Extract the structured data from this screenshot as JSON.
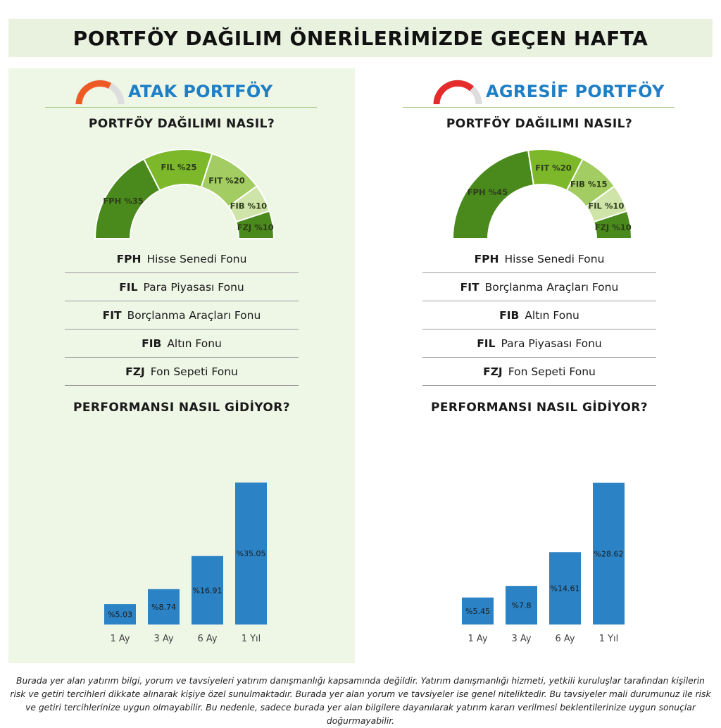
{
  "title": "PORTFÖY DAĞILIM ÖNERİLERİMİZDE GEÇEN HAFTA",
  "panels": [
    {
      "name": "ATAK PORTFÖY",
      "gauge_color": "#ee5a24",
      "distribution_title": "PORTFÖY DAĞILIMI NASIL?",
      "performance_title": "PERFORMANSI NASIL GİDİYOR?",
      "legend": [
        {
          "code": "FPH",
          "label": "Hisse Senedi Fonu"
        },
        {
          "code": "FIL",
          "label": "Para Piyasası Fonu"
        },
        {
          "code": "FIT",
          "label": "Borçlanma Araçları Fonu"
        },
        {
          "code": "FIB",
          "label": "Altın Fonu"
        },
        {
          "code": "FZJ",
          "label": "Fon Sepeti Fonu"
        }
      ]
    },
    {
      "name": "AGRESİF PORTFÖY",
      "gauge_color": "#e52b2b",
      "distribution_title": "PORTFÖY DAĞILIMI NASIL?",
      "performance_title": "PERFORMANSI NASIL GİDİYOR?",
      "legend": [
        {
          "code": "FPH",
          "label": "Hisse Senedi Fonu"
        },
        {
          "code": "FIT",
          "label": "Borçlanma Araçları Fonu"
        },
        {
          "code": "FIB",
          "label": "Altın Fonu"
        },
        {
          "code": "FIL",
          "label": "Para Piyasası Fonu"
        },
        {
          "code": "FZJ",
          "label": "Fon Sepeti Fonu"
        }
      ]
    }
  ],
  "chart_data": [
    {
      "type": "pie",
      "variant": "semi-donut",
      "panel": "ATAK PORTFÖY",
      "slices": [
        {
          "label": "FPH %35",
          "value": 35,
          "color": "#4a8a1c"
        },
        {
          "label": "FIL %25",
          "value": 25,
          "color": "#7cb82a"
        },
        {
          "label": "FIT %20",
          "value": 20,
          "color": "#a3cc63"
        },
        {
          "label": "FIB %10",
          "value": 10,
          "color": "#cfe4a9"
        },
        {
          "label": "FZJ %10",
          "value": 10,
          "color": "#4a8a1c"
        }
      ]
    },
    {
      "type": "bar",
      "panel": "ATAK PORTFÖY",
      "categories": [
        "1 Ay",
        "3 Ay",
        "6 Ay",
        "1 Yıl"
      ],
      "values": [
        5.03,
        8.74,
        16.91,
        35.05
      ],
      "value_labels": [
        "%5.03",
        "%8.74",
        "%16.91",
        "%35.05"
      ],
      "ylim": [
        0,
        40
      ],
      "color": "#2b83c6"
    },
    {
      "type": "pie",
      "variant": "semi-donut",
      "panel": "AGRESİF PORTFÖY",
      "slices": [
        {
          "label": "FPH %45",
          "value": 45,
          "color": "#4a8a1c"
        },
        {
          "label": "FIT %20",
          "value": 20,
          "color": "#7cb82a"
        },
        {
          "label": "FIB %15",
          "value": 15,
          "color": "#a3cc63"
        },
        {
          "label": "FIL %10",
          "value": 10,
          "color": "#cfe4a9"
        },
        {
          "label": "FZJ %10",
          "value": 10,
          "color": "#4a8a1c"
        }
      ]
    },
    {
      "type": "bar",
      "panel": "AGRESİF PORTFÖY",
      "categories": [
        "1 Ay",
        "3 Ay",
        "6 Ay",
        "1 Yıl"
      ],
      "values": [
        5.45,
        7.8,
        14.61,
        28.62
      ],
      "value_labels": [
        "%5.45",
        "%7.8",
        "%14.61",
        "%28.62"
      ],
      "ylim": [
        0,
        32.7
      ],
      "color": "#2b83c6"
    }
  ],
  "disclaimer": "Burada yer alan yatırım bilgi, yorum ve tavsiyeleri yatırım danışmanlığı kapsamında değildir. Yatırım danışmanlığı hizmeti, yetkili kuruluşlar tarafından kişilerin risk ve getiri tercihleri dikkate alınarak kişiye özel sunulmaktadır. Burada yer alan yorum ve tavsiyeler ise genel niteliktedir. Bu tavsiyeler mali durumunuz ile risk ve getiri tercihlerinize uygun olmayabilir. Bu nedenle, sadece burada yer alan bilgilere dayanılarak yatırım kararı verilmesi beklentilerinize uygun sonuçlar doğurmayabilir."
}
